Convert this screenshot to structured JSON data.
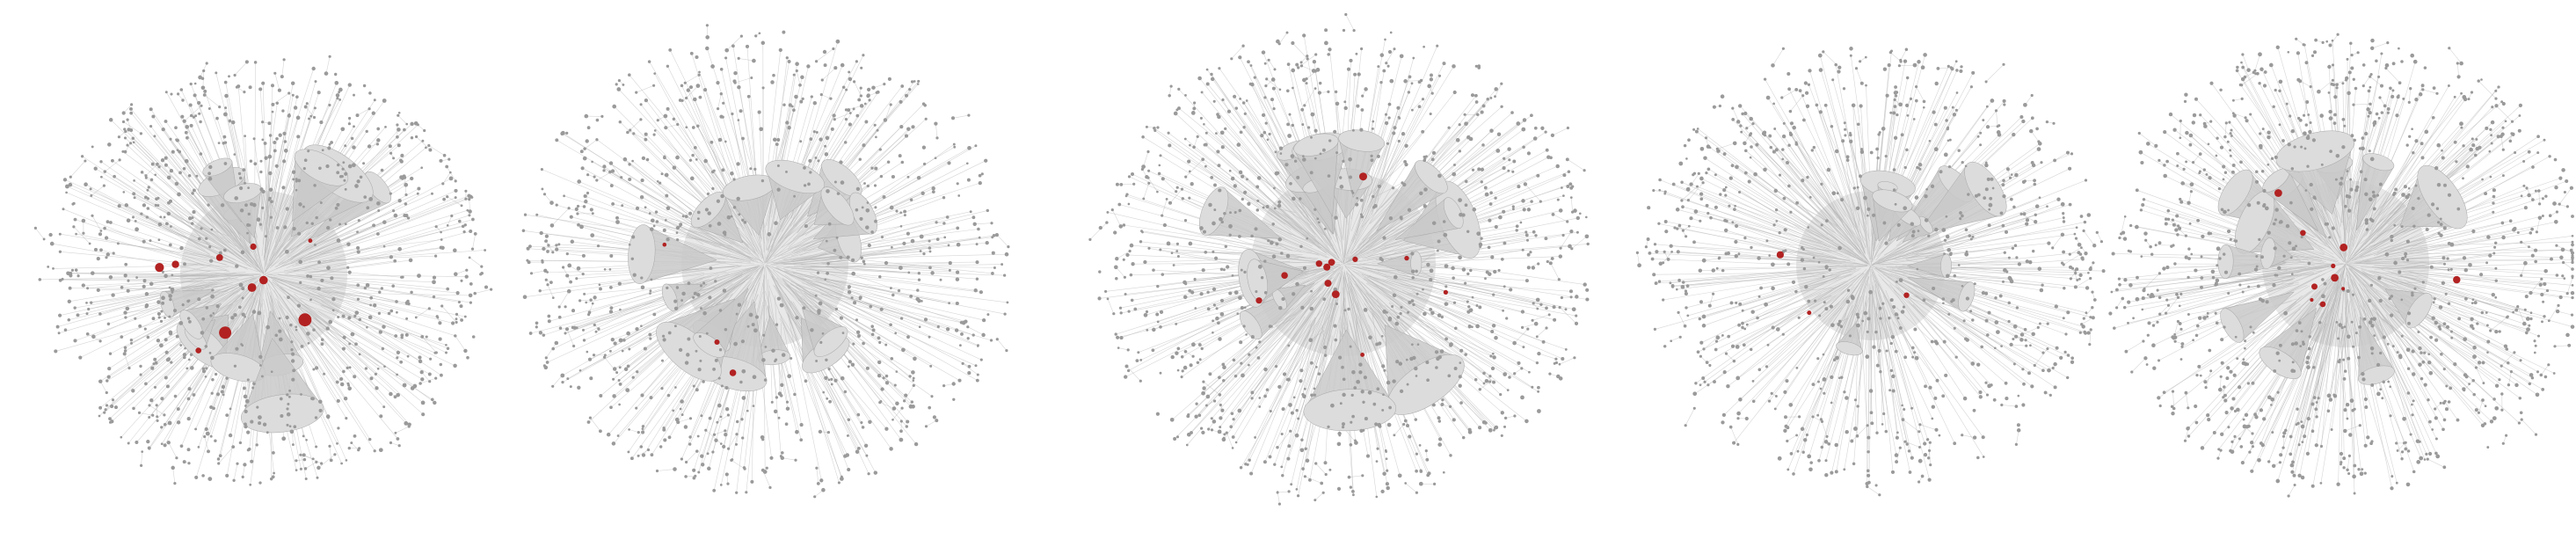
{
  "figure": {
    "description_visible_text": "",
    "panel_count": 5,
    "colors": {
      "background": "#ffffff",
      "edge": "#b5b5b5",
      "node": "#9a9a9a",
      "hub": "#c9c9c9",
      "highlight": "#b22222"
    },
    "panels": [
      {
        "id": "network-1",
        "nodes": 900,
        "hubs": 14,
        "highlighted_nodes": 10
      },
      {
        "id": "network-2",
        "nodes": 850,
        "hubs": 16,
        "highlighted_nodes": 3
      },
      {
        "id": "network-3",
        "nodes": 950,
        "hubs": 18,
        "highlighted_nodes": 12
      },
      {
        "id": "network-4",
        "nodes": 800,
        "hubs": 10,
        "highlighted_nodes": 3
      },
      {
        "id": "network-5",
        "nodes": 1000,
        "hubs": 14,
        "highlighted_nodes": 10
      }
    ]
  }
}
